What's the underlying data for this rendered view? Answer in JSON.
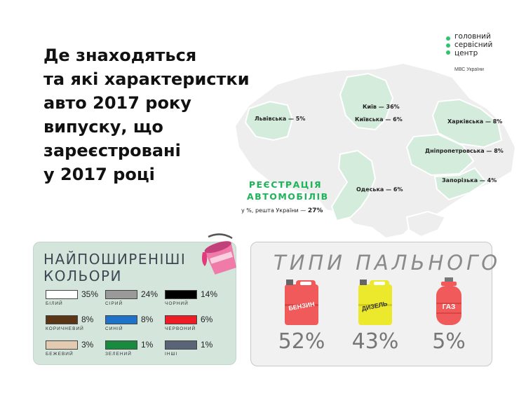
{
  "title_lines": [
    "Де знаходяться",
    "та які характеристки",
    "авто 2017 року",
    "випуску, що",
    "зареєстровані",
    "у 2017 році"
  ],
  "logo": {
    "line1": "головний",
    "line2": "сервісний",
    "line3": "центр",
    "sub": "МВС України"
  },
  "registration": {
    "title_line1": "РЕЄСТРАЦІЯ",
    "title_line2": "АВТОМОБІЛІВ",
    "note": "у %, решта України —",
    "rest_value": "27%",
    "regions": [
      {
        "label": "Львівська — 5%",
        "share": 5
      },
      {
        "label": "Київ — 36%",
        "share": 36
      },
      {
        "label": "Київська — 6%",
        "share": 6
      },
      {
        "label": "Харківська — 8%",
        "share": 8
      },
      {
        "label": "Дніпропетровська — 8%",
        "share": 8
      },
      {
        "label": "Запорізька — 4%",
        "share": 4
      },
      {
        "label": "Одеська — 6%",
        "share": 6
      }
    ]
  },
  "colors": {
    "title_line1": "НАЙПОШИРЕНІШІ",
    "title_line2": "КОЛЬОРИ",
    "items": [
      {
        "name": "БІЛИЙ",
        "pct": "35%",
        "color": "#ffffff"
      },
      {
        "name": "СІРИЙ",
        "pct": "24%",
        "color": "#9a9a9a"
      },
      {
        "name": "ЧОРНИЙ",
        "pct": "14%",
        "color": "#000000"
      },
      {
        "name": "КОРИЧНЕВИЙ",
        "pct": "8%",
        "color": "#5a3617"
      },
      {
        "name": "СИНІЙ",
        "pct": "8%",
        "color": "#1e73c8"
      },
      {
        "name": "ЧЕРВОНИЙ",
        "pct": "6%",
        "color": "#ee1c25"
      },
      {
        "name": "БЕЖЕВИЙ",
        "pct": "3%",
        "color": "#e2cbb0"
      },
      {
        "name": "ЗЕЛЕНИЙ",
        "pct": "1%",
        "color": "#1a8a3f"
      },
      {
        "name": "ІНШІ",
        "pct": "1%",
        "color": "#5a6477"
      }
    ]
  },
  "fuel": {
    "title": "ТИПИ ПАЛЬНОГО",
    "items": [
      {
        "name": "БЕНЗИН",
        "pct": "52%",
        "color": "#f05a5a",
        "icon": "jerrycan-icon"
      },
      {
        "name": "ДИЗЕЛЬ",
        "pct": "43%",
        "color": "#ece82c",
        "icon": "jerrycan-icon"
      },
      {
        "name": "ГАЗ",
        "pct": "5%",
        "color": "#f05a5a",
        "icon": "gas-cylinder-icon"
      }
    ]
  }
}
